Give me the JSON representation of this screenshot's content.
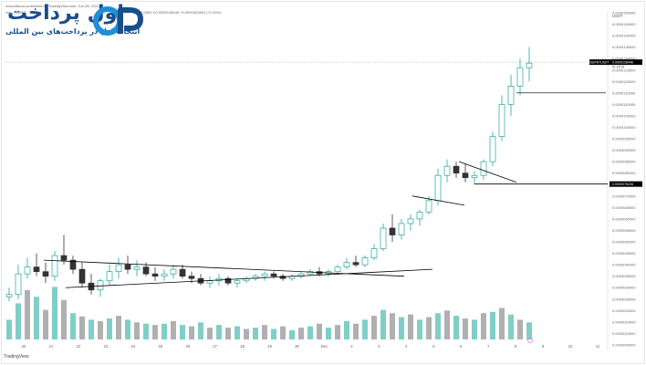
{
  "header": {
    "published_by": "AmooBanoo published on TradingView.com, Jun 08, 2021",
    "symbol_line": "Vol · BURNT · 62.12K",
    "ohlc_line": "O 0.0000 C0.0000128446 +0.0000001891 (+1.49%)"
  },
  "logo": {
    "brand": "اول پرداخت",
    "tagline": "انتخاب اول در پرداخت‌های بین المللی",
    "mark_text": "OP"
  },
  "footer": {
    "tradingview": "TradingView"
  },
  "colors": {
    "candle_up": "#26a69a",
    "candle_down": "#333333",
    "volume_up": "#7fcfc8",
    "volume_down": "#b0b0b0",
    "line": "#000000",
    "logo_primary": "#1a4e8a",
    "logo_accent": "#1c8fd6",
    "price_label_bg": "#000000",
    "price_label_fg": "#ffffff"
  },
  "chart_data": {
    "type": "candlestick",
    "axis_currency": "USDT",
    "y_ticks": [
      "0.0000150000",
      "0.0000145000",
      "0.0000140000",
      "0.0000135000",
      "0.0000130000",
      "0.0000125000",
      "0.0000120000",
      "0.0000115000",
      "0.0000110000",
      "0.0000105000",
      "0.0000100000",
      "0.0000095000",
      "0.0000090000",
      "0.0000085000",
      "0.0000080000",
      "0.0000075000",
      "0.0000070000",
      "0.0000065000",
      "0.0000060000",
      "0.0000055000",
      "0.0000050000",
      "0.0000045000",
      "0.0000040000",
      "0.0000035000",
      "0.0000030000",
      "0.0000025000",
      "0.0000020000",
      "0.0000015000",
      "0.0000010000",
      "0.0000005000"
    ],
    "x_ticks": [
      "20",
      "21",
      "22",
      "23",
      "24",
      "25",
      "26",
      "27",
      "28",
      "29",
      "30",
      "Dec",
      "2",
      "3",
      "4",
      "5",
      "6",
      "7",
      "8",
      "9",
      "10",
      "11"
    ],
    "price_labels": {
      "current_symbol": "BURNTUSDT",
      "current_price": "0.0000128446",
      "countdown": "01:33:18",
      "level_label": "0.0000075226"
    },
    "candles": [
      [
        2.6e-06,
        3e-06,
        2.4e-06,
        2.7e-06
      ],
      [
        2.7e-06,
        4e-06,
        2.5e-06,
        3.6e-06
      ],
      [
        3.6e-06,
        4.3e-06,
        3.4e-06,
        3.9e-06
      ],
      [
        3.9e-06,
        4.5e-06,
        3.5e-06,
        3.7e-06
      ],
      [
        3.7e-06,
        4.1e-06,
        3.2e-06,
        3.5e-06
      ],
      [
        3.5e-06,
        4.6e-06,
        3.3e-06,
        4.4e-06
      ],
      [
        4.4e-06,
        5.3e-06,
        4e-06,
        4.2e-06
      ],
      [
        4.2e-06,
        4.4e-06,
        3.6e-06,
        3.8e-06
      ],
      [
        3.8e-06,
        4.1e-06,
        3e-06,
        3.2e-06
      ],
      [
        3.2e-06,
        3.6e-06,
        2.7e-06,
        2.9e-06
      ],
      [
        2.9e-06,
        3.4e-06,
        2.6e-06,
        3.3e-06
      ],
      [
        3.3e-06,
        4e-06,
        3.1e-06,
        3.7e-06
      ],
      [
        3.7e-06,
        4.3e-06,
        3.4e-06,
        4e-06
      ],
      [
        4e-06,
        4.4e-06,
        3.6e-06,
        3.8e-06
      ],
      [
        3.8e-06,
        4.2e-06,
        3.5e-06,
        3.9e-06
      ],
      [
        3.9e-06,
        4.1e-06,
        3.5e-06,
        3.6e-06
      ],
      [
        3.6e-06,
        3.9e-06,
        3.3e-06,
        3.5e-06
      ],
      [
        3.5e-06,
        3.8e-06,
        3.3e-06,
        3.6e-06
      ],
      [
        3.6e-06,
        4e-06,
        3.4e-06,
        3.8e-06
      ],
      [
        3.8e-06,
        4e-06,
        3.4e-06,
        3.5e-06
      ],
      [
        3.5e-06,
        3.7e-06,
        3.2e-06,
        3.4e-06
      ],
      [
        3.4e-06,
        3.6e-06,
        3.1e-06,
        3.2e-06
      ],
      [
        3.2e-06,
        3.5e-06,
        3e-06,
        3.3e-06
      ],
      [
        3.3e-06,
        3.6e-06,
        3.1e-06,
        3.4e-06
      ],
      [
        3.4e-06,
        3.5e-06,
        3.1e-06,
        3.2e-06
      ],
      [
        3.2e-06,
        3.4e-06,
        3e-06,
        3.3e-06
      ],
      [
        3.3e-06,
        3.5e-06,
        3.2e-06,
        3.4e-06
      ],
      [
        3.4e-06,
        3.6e-06,
        3.3e-06,
        3.5e-06
      ],
      [
        3.5e-06,
        3.7e-06,
        3.3e-06,
        3.6e-06
      ],
      [
        3.6e-06,
        3.7e-06,
        3.4e-06,
        3.5e-06
      ],
      [
        3.5e-06,
        3.6e-06,
        3.3e-06,
        3.4e-06
      ],
      [
        3.4e-06,
        3.6e-06,
        3.3e-06,
        3.5e-06
      ],
      [
        3.5e-06,
        3.7e-06,
        3.4e-06,
        3.6e-06
      ],
      [
        3.6e-06,
        3.8e-06,
        3.5e-06,
        3.7e-06
      ],
      [
        3.7e-06,
        3.9e-06,
        3.5e-06,
        3.6e-06
      ],
      [
        3.6e-06,
        3.8e-06,
        3.5e-06,
        3.7e-06
      ],
      [
        3.7e-06,
        4e-06,
        3.6e-06,
        3.9e-06
      ],
      [
        3.9e-06,
        4.3e-06,
        3.8e-06,
        4.1e-06
      ],
      [
        4.1e-06,
        4.4e-06,
        3.9e-06,
        4e-06
      ],
      [
        4e-06,
        4.4e-06,
        3.9e-06,
        4.3e-06
      ],
      [
        4.3e-06,
        4.9e-06,
        4.2e-06,
        4.7e-06
      ],
      [
        4.7e-06,
        5.8e-06,
        4.6e-06,
        5.6e-06
      ],
      [
        5.6e-06,
        6.2e-06,
        5e-06,
        5.3e-06
      ],
      [
        5.3e-06,
        6e-06,
        5.1e-06,
        5.8e-06
      ],
      [
        5.8e-06,
        6.2e-06,
        5.5e-06,
        6e-06
      ],
      [
        6e-06,
        6.4e-06,
        5.7e-06,
        6.3e-06
      ],
      [
        6.3e-06,
        7e-06,
        6.2e-06,
        6.8e-06
      ],
      [
        6.8e-06,
        8.2e-06,
        6.6e-06,
        7.9e-06
      ],
      [
        7.9e-06,
        8.6e-06,
        7.6e-06,
        8.3e-06
      ],
      [
        8.3e-06,
        8.5e-06,
        7.8e-06,
        8e-06
      ],
      [
        8e-06,
        8.4e-06,
        7.6e-06,
        7.8e-06
      ],
      [
        7.8e-06,
        8.1e-06,
        7.5e-06,
        7.9e-06
      ],
      [
        7.9e-06,
        8.6e-06,
        7.7e-06,
        8.5e-06
      ],
      [
        8.5e-06,
        9.8e-06,
        8.3e-06,
        9.6e-06
      ],
      [
        9.6e-06,
        1.14e-05,
        9.4e-06,
        1.1e-05
      ],
      [
        1.1e-05,
        1.23e-05,
        1.05e-05,
        1.18e-05
      ],
      [
        1.18e-05,
        1.3e-05,
        1.14e-05,
        1.26e-05
      ],
      [
        1.26e-05,
        1.35e-05,
        1.2e-05,
        1.28e-05
      ]
    ],
    "volumes": [
      [
        0.3,
        1
      ],
      [
        0.55,
        1
      ],
      [
        0.75,
        0
      ],
      [
        0.65,
        1
      ],
      [
        0.45,
        0
      ],
      [
        0.8,
        1
      ],
      [
        0.6,
        0
      ],
      [
        0.4,
        1
      ],
      [
        0.35,
        0
      ],
      [
        0.3,
        1
      ],
      [
        0.28,
        0
      ],
      [
        0.32,
        1
      ],
      [
        0.36,
        0
      ],
      [
        0.3,
        1
      ],
      [
        0.26,
        0
      ],
      [
        0.24,
        1
      ],
      [
        0.22,
        0
      ],
      [
        0.24,
        1
      ],
      [
        0.28,
        0
      ],
      [
        0.22,
        1
      ],
      [
        0.2,
        0
      ],
      [
        0.26,
        1
      ],
      [
        0.18,
        0
      ],
      [
        0.22,
        1
      ],
      [
        0.18,
        0
      ],
      [
        0.2,
        1
      ],
      [
        0.16,
        0
      ],
      [
        0.18,
        1
      ],
      [
        0.22,
        0
      ],
      [
        0.16,
        1
      ],
      [
        0.2,
        0
      ],
      [
        0.14,
        1
      ],
      [
        0.18,
        0
      ],
      [
        0.2,
        1
      ],
      [
        0.24,
        0
      ],
      [
        0.18,
        1
      ],
      [
        0.22,
        0
      ],
      [
        0.28,
        1
      ],
      [
        0.24,
        0
      ],
      [
        0.3,
        1
      ],
      [
        0.36,
        0
      ],
      [
        0.45,
        1
      ],
      [
        0.4,
        0
      ],
      [
        0.34,
        1
      ],
      [
        0.38,
        0
      ],
      [
        0.3,
        1
      ],
      [
        0.34,
        0
      ],
      [
        0.4,
        1
      ],
      [
        0.44,
        0
      ],
      [
        0.36,
        1
      ],
      [
        0.32,
        0
      ],
      [
        0.3,
        1
      ],
      [
        0.4,
        0
      ],
      [
        0.42,
        1
      ],
      [
        0.48,
        0
      ],
      [
        0.38,
        1
      ],
      [
        0.3,
        0
      ],
      [
        0.26,
        1
      ]
    ],
    "ylim": [
      5e-07,
      1.5e-05
    ]
  }
}
